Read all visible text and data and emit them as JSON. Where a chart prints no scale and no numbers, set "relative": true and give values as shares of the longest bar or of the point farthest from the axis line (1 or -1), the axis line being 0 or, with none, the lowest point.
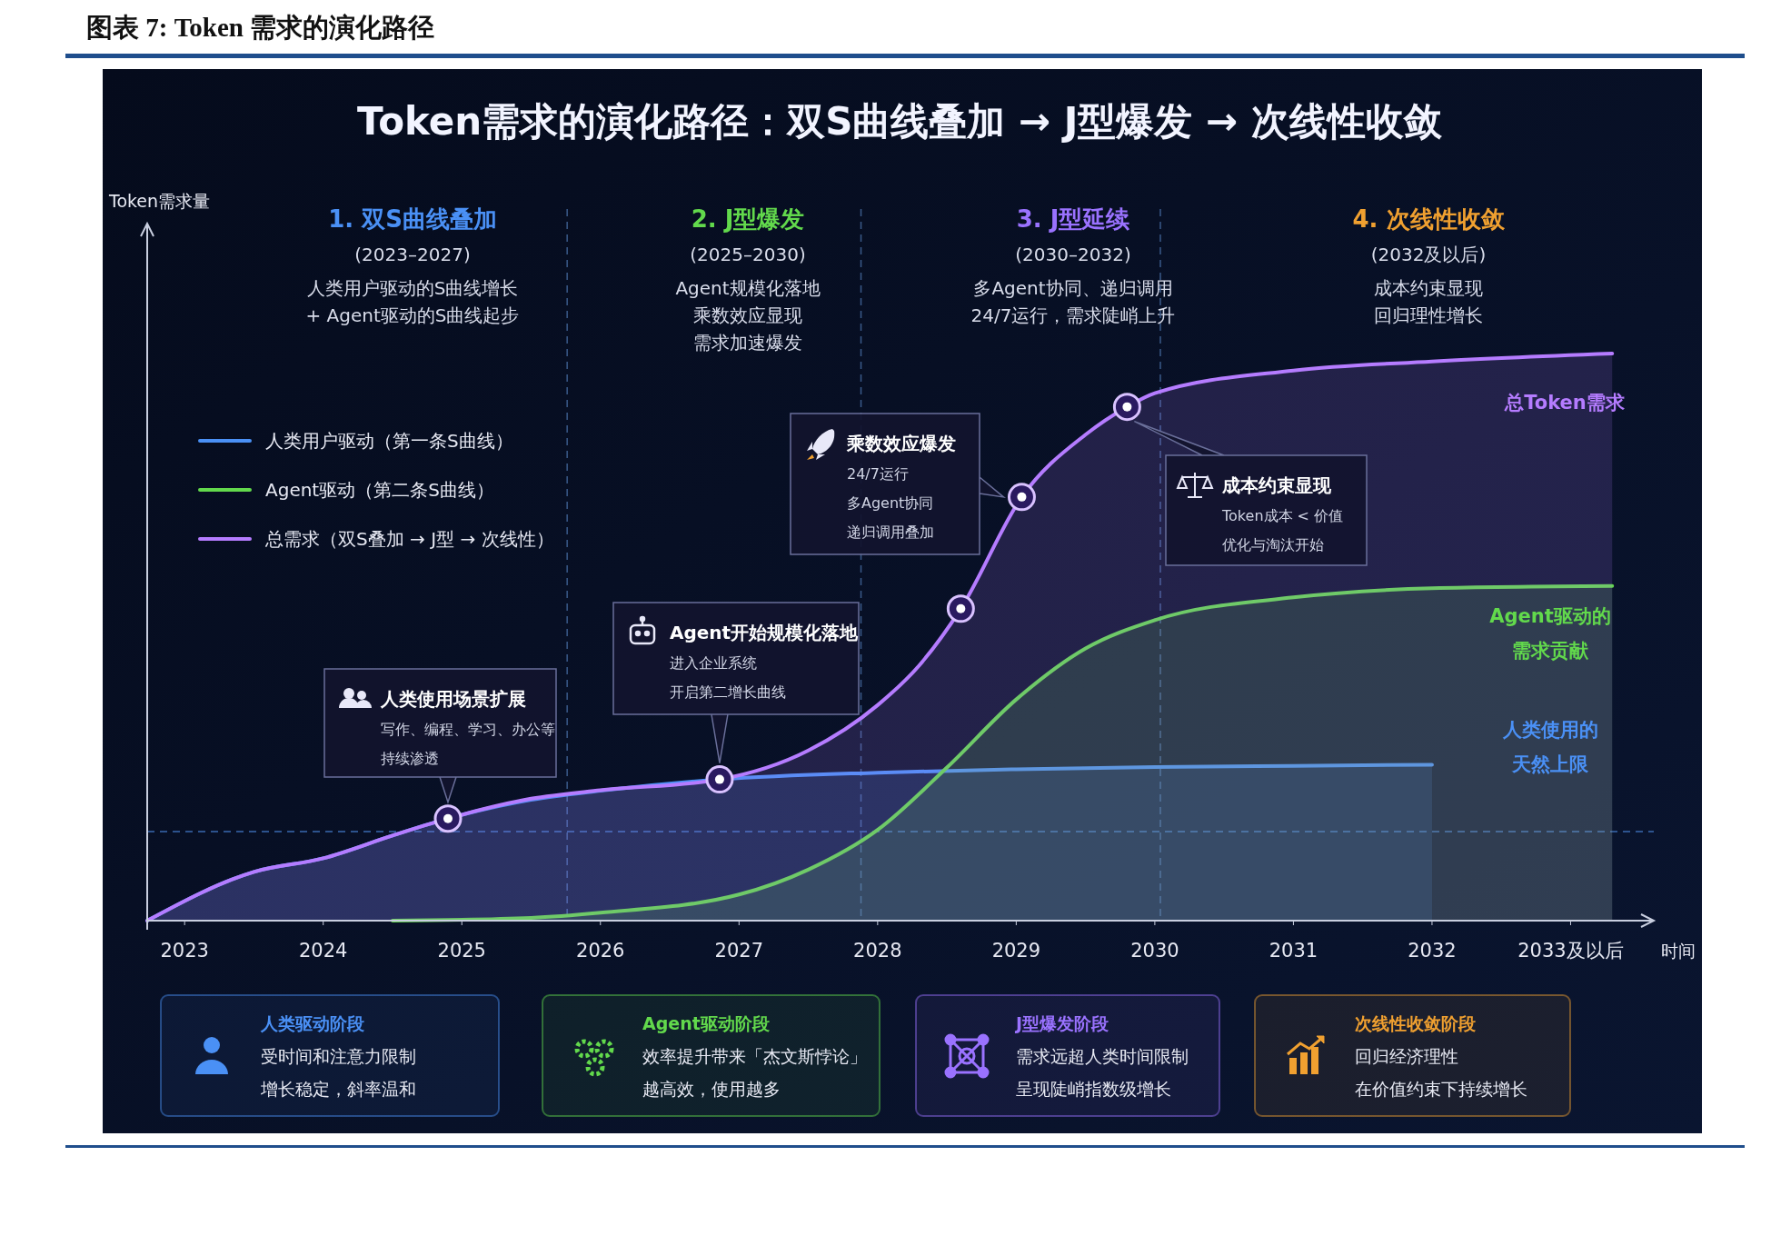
{
  "chart_data": {
    "type": "area",
    "title": "图表 7: Token 需求的演化路径",
    "subtitle": "Token需求的演化路径：双S曲线叠加 → J型爆发 → 次线性收敛",
    "xlabel": "时间",
    "relative": true,
    "legend": "top left",
    "xlim": [
      2022.73,
      2033.6
    ],
    "xticks": [
      2023,
      2024,
      2025,
      2026,
      2027,
      2028,
      2029,
      2030,
      2031,
      2032,
      {
        "value": 2033,
        "label": "2033及以后"
      }
    ],
    "series": [
      {
        "name": "人类用户驱动（第一条S曲线）",
        "color": "#4a90f5",
        "x": [
          2022.73,
          2023.5,
          2024,
          2024.5,
          2024.9,
          2025.5,
          2026,
          2026.86,
          2028,
          2029,
          2030,
          2031,
          2032
        ],
        "values": [
          0,
          0.086,
          0.11,
          0.15,
          0.18,
          0.213,
          0.229,
          0.249,
          0.261,
          0.267,
          0.271,
          0.273,
          0.275
        ]
      },
      {
        "name": "Agent驱动（第二条S曲线）",
        "color": "#62d94c",
        "x": [
          2024.5,
          2025.5,
          2026,
          2027,
          2027.5,
          2028,
          2028.5,
          2029,
          2029.5,
          2030,
          2031,
          2032,
          2033.3
        ],
        "values": [
          0,
          0.005,
          0.014,
          0.046,
          0.09,
          0.16,
          0.27,
          0.39,
          0.48,
          0.53,
          0.57,
          0.586,
          0.59
        ]
      },
      {
        "name": "总需求（双S叠加 → J型 → 次线性）",
        "color": "#b57cff",
        "x": [
          2022.73,
          2023.5,
          2024,
          2024.5,
          2024.9,
          2025.5,
          2026,
          2026.86,
          2027.5,
          2028,
          2028.3,
          2028.6,
          2029.04,
          2029.5,
          2029.8,
          2030,
          2031,
          2032,
          2033.3
        ],
        "values": [
          0,
          0.086,
          0.11,
          0.15,
          0.18,
          0.215,
          0.23,
          0.249,
          0.3,
          0.38,
          0.45,
          0.55,
          0.747,
          0.857,
          0.906,
          0.93,
          0.97,
          0.986,
          1
        ]
      },
      {
        "type": "scatter",
        "marker": "circle",
        "color": "#d9c2ff",
        "x": [
          2024.9,
          2026.86,
          2028.6,
          2029.04,
          2029.8
        ],
        "values": [
          0.18,
          0.249,
          0.55,
          0.747,
          0.906
        ]
      }
    ],
    "ref_lines": [
      {
        "axis": "x",
        "value": 2025.76,
        "color": "#3a5a8a",
        "line_style": "dashed"
      },
      {
        "axis": "x",
        "value": 2027.88,
        "color": "#3a5a8a",
        "line_style": "dashed"
      },
      {
        "axis": "x",
        "value": 2030.04,
        "color": "#3a5a8a",
        "line_style": "dashed"
      },
      {
        "axis": "y",
        "value": 0.157,
        "color": "#3a6ab0",
        "line_style": "dashed"
      }
    ],
    "annotations": [
      "1. 双S曲线叠加",
      "(2023–2027)",
      "人类用户驱动的S曲线增长",
      "+ Agent驱动的S曲线起步",
      "2. J型爆发",
      "(2025–2030)",
      "Agent规模化落地",
      "乘数效应显现",
      "需求加速爆发",
      "3. J型延续",
      "(2030–2032)",
      "多Agent协同、递归调用",
      "24/7运行，需求陡峭上升",
      "4. 次线性收敛",
      "(2032及以后)",
      "成本约束显现",
      "回归理性增长",
      "人类使用场景扩展",
      "写作、编程、学习、办公等",
      "持续渗透",
      "Agent开始规模化落地",
      "进入企业系统",
      "开启第二增长曲线",
      "乘数效应爆发",
      "24/7运行",
      "多Agent协同",
      "递归调用叠加",
      "成本约束显现",
      "Token成本 < 价值",
      "优化与淘汰开始",
      "总Token需求",
      "Agent驱动的",
      "需求贡献",
      "人类使用的",
      "天然上限",
      "人类驱动阶段",
      "受时间和注意力限制",
      "增长稳定，斜率温和",
      "Agent驱动阶段",
      "效率提升带来「杰文斯悖论」",
      "越高效，使用越多",
      "J型爆发阶段",
      "需求远超人类时间限制",
      "呈现陡峭指数级增长",
      "次线性收敛阶段",
      "回归经济理性",
      "在价值约束下持续增长",
      "Token需求量"
    ]
  }
}
